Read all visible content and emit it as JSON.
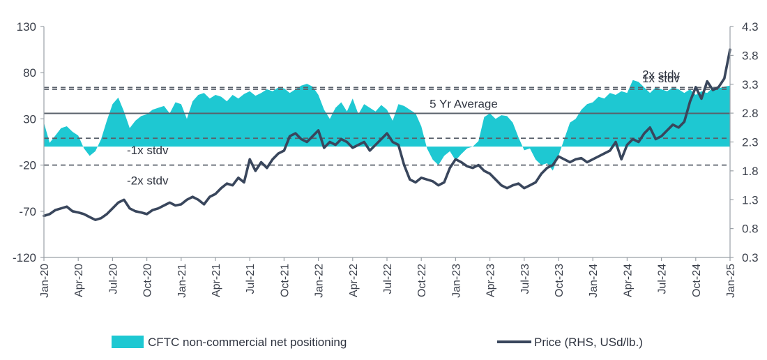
{
  "chart_data": {
    "type": "area+line",
    "title": "",
    "colors": {
      "positioning": "#1ec8d2",
      "price": "#39465c",
      "axis": "#9aa0a6",
      "refline": "#5a616b"
    },
    "left_axis": {
      "ylim": [
        -120,
        130
      ],
      "ticks": [
        130,
        80,
        30,
        -20,
        -70,
        -120
      ],
      "labels": [
        "130",
        "80",
        "30",
        "-20",
        "-70",
        "-120"
      ]
    },
    "right_axis": {
      "ylim": [
        0.3,
        4.3
      ],
      "ticks": [
        4.3,
        3.8,
        3.3,
        2.8,
        2.3,
        1.8,
        1.3,
        0.8,
        0.3
      ],
      "labels": [
        "4.3",
        "3.8",
        "3.3",
        "2.8",
        "2.3",
        "1.8",
        "1.3",
        "0.8",
        "0.3"
      ]
    },
    "x_labels": [
      "Jan-20",
      "Apr-20",
      "Jul-20",
      "Oct-20",
      "Jan-21",
      "Apr-21",
      "Jul-21",
      "Oct-21",
      "Jan-22",
      "Apr-22",
      "Jul-22",
      "Oct-22",
      "Jan-23",
      "Apr-23",
      "Jul-23",
      "Oct-23",
      "Jan-24",
      "Apr-24",
      "Jul-24",
      "Oct-24",
      "Jan-25"
    ],
    "x_label_months": [
      0,
      3,
      6,
      9,
      12,
      15,
      18,
      21,
      24,
      27,
      30,
      33,
      36,
      39,
      42,
      45,
      48,
      51,
      54,
      57,
      60
    ],
    "reference_lines": [
      {
        "label": "2x stdv",
        "value": 64,
        "style": "dashed"
      },
      {
        "label": "1x stdv",
        "value": 62,
        "style": "dashed"
      },
      {
        "label": "5 Yr Average",
        "value": 36,
        "style": "solid"
      },
      {
        "label": "-1x stdv",
        "value": 9,
        "style": "dashed"
      },
      {
        "label": "-2x stdv",
        "value": -20,
        "style": "dashed"
      }
    ],
    "series": [
      {
        "name": "CFTC non-commercial net positioning",
        "axis": "left",
        "type": "area",
        "x_months": [
          0,
          0.5,
          1,
          1.5,
          2,
          2.5,
          3,
          3.5,
          4,
          4.5,
          5,
          5.5,
          6,
          6.5,
          7,
          7.5,
          8,
          8.5,
          9,
          9.5,
          10,
          10.5,
          11,
          11.5,
          12,
          12.5,
          13,
          13.5,
          14,
          14.5,
          15,
          15.5,
          16,
          16.5,
          17,
          17.5,
          18,
          18.5,
          19,
          19.5,
          20,
          20.5,
          21,
          21.5,
          22,
          22.5,
          23,
          23.5,
          24,
          24.5,
          25,
          25.5,
          26,
          26.5,
          27,
          27.5,
          28,
          28.5,
          29,
          29.5,
          30,
          30.5,
          31,
          31.5,
          32,
          32.5,
          33,
          33.5,
          34,
          34.5,
          35,
          35.5,
          36,
          36.5,
          37,
          37.5,
          38,
          38.5,
          39,
          39.5,
          40,
          40.5,
          41,
          41.5,
          42,
          42.5,
          43,
          43.5,
          44,
          44.5,
          45,
          45.5,
          46,
          46.5,
          47,
          47.5,
          48,
          48.5,
          49,
          49.5,
          50,
          50.5,
          51,
          51.5,
          52,
          52.5,
          53,
          53.5,
          54,
          54.5,
          55,
          55.5,
          56,
          56.5,
          57,
          57.5,
          58,
          58.5,
          59,
          59.5,
          60
        ],
        "values": [
          26,
          4,
          12,
          20,
          22,
          16,
          12,
          -2,
          -10,
          -5,
          8,
          28,
          46,
          53,
          38,
          20,
          28,
          33,
          35,
          40,
          42,
          44,
          36,
          48,
          46,
          30,
          49,
          56,
          58,
          52,
          56,
          54,
          49,
          56,
          52,
          57,
          60,
          55,
          58,
          62,
          60,
          64,
          63,
          58,
          62,
          66,
          68,
          65,
          56,
          40,
          30,
          42,
          48,
          38,
          52,
          35,
          46,
          42,
          38,
          45,
          40,
          28,
          46,
          44,
          40,
          36,
          22,
          -2,
          -14,
          -20,
          -10,
          -5,
          -15,
          -8,
          -2,
          0,
          6,
          32,
          36,
          30,
          34,
          33,
          26,
          10,
          -4,
          -2,
          -14,
          -20,
          -18,
          -26,
          -10,
          8,
          26,
          30,
          40,
          46,
          48,
          54,
          52,
          58,
          56,
          60,
          58,
          72,
          70,
          64,
          58,
          64,
          62,
          60,
          64,
          62,
          58,
          62,
          56,
          60,
          58,
          64,
          63,
          65,
          66
        ]
      },
      {
        "name": "Price (RHS, USd/lb.)",
        "axis": "right",
        "type": "line",
        "x_months": [
          0,
          0.5,
          1,
          1.5,
          2,
          2.5,
          3,
          3.5,
          4,
          4.5,
          5,
          5.5,
          6,
          6.5,
          7,
          7.5,
          8,
          8.5,
          9,
          9.5,
          10,
          10.5,
          11,
          11.5,
          12,
          12.5,
          13,
          13.5,
          14,
          14.5,
          15,
          15.5,
          16,
          16.5,
          17,
          17.5,
          18,
          18.5,
          19,
          19.5,
          20,
          20.5,
          21,
          21.5,
          22,
          22.5,
          23,
          23.5,
          24,
          24.5,
          25,
          25.5,
          26,
          26.5,
          27,
          27.5,
          28,
          28.5,
          29,
          29.5,
          30,
          30.5,
          31,
          31.5,
          32,
          32.5,
          33,
          33.5,
          34,
          34.5,
          35,
          35.5,
          36,
          36.5,
          37,
          37.5,
          38,
          38.5,
          39,
          39.5,
          40,
          40.5,
          41,
          41.5,
          42,
          42.5,
          43,
          43.5,
          44,
          44.5,
          45,
          45.5,
          46,
          46.5,
          47,
          47.5,
          48,
          48.5,
          49,
          49.5,
          50,
          50.5,
          51,
          51.5,
          52,
          52.5,
          53,
          53.5,
          54,
          54.5,
          55,
          55.5,
          56,
          56.5,
          57,
          57.5,
          58,
          58.5,
          59,
          59.5,
          60
        ],
        "values": [
          1.02,
          1.05,
          1.12,
          1.15,
          1.18,
          1.1,
          1.08,
          1.05,
          1.0,
          0.95,
          0.98,
          1.05,
          1.15,
          1.25,
          1.3,
          1.15,
          1.1,
          1.08,
          1.05,
          1.12,
          1.15,
          1.2,
          1.25,
          1.2,
          1.22,
          1.3,
          1.35,
          1.3,
          1.22,
          1.35,
          1.4,
          1.5,
          1.58,
          1.55,
          1.68,
          1.6,
          2.0,
          1.8,
          1.95,
          1.85,
          2.0,
          2.1,
          2.15,
          2.4,
          2.45,
          2.35,
          2.3,
          2.4,
          2.5,
          2.2,
          2.3,
          2.25,
          2.35,
          2.3,
          2.2,
          2.25,
          2.3,
          2.15,
          2.25,
          2.35,
          2.45,
          2.3,
          2.25,
          1.9,
          1.65,
          1.6,
          1.68,
          1.65,
          1.62,
          1.55,
          1.6,
          1.85,
          2.0,
          1.95,
          1.88,
          1.85,
          1.9,
          1.8,
          1.75,
          1.65,
          1.55,
          1.5,
          1.55,
          1.58,
          1.5,
          1.55,
          1.6,
          1.75,
          1.85,
          1.9,
          2.05,
          2.0,
          1.95,
          2.0,
          2.02,
          1.95,
          2.0,
          2.05,
          2.1,
          2.15,
          2.3,
          2.0,
          2.25,
          2.35,
          2.3,
          2.45,
          2.55,
          2.35,
          2.4,
          2.5,
          2.6,
          2.55,
          2.65,
          3.0,
          3.25,
          3.05,
          3.35,
          3.2,
          3.25,
          3.4,
          3.9
        ]
      }
    ],
    "legend": [
      {
        "label": "CFTC non-commercial net positioning",
        "type": "area"
      },
      {
        "label": "Price (RHS, USd/lb.)",
        "type": "line"
      }
    ]
  }
}
